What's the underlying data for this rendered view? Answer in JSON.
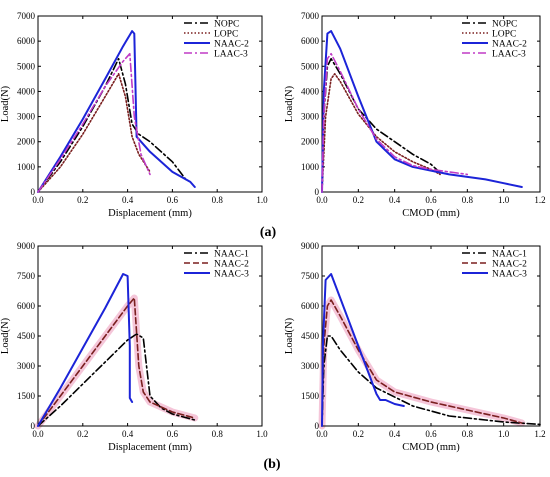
{
  "panel_labels": {
    "a": "(a)",
    "b": "(b)"
  },
  "colors": {
    "black": "#000000",
    "brown": "#7a1f1f",
    "blue": "#1c24d8",
    "purple": "#c03cc6",
    "pink_band": "#f3b8cf"
  },
  "chart_data": [
    {
      "id": "chart-a-left",
      "type": "line",
      "xlabel": "Displacement (mm)",
      "ylabel": "Load(N)",
      "xlim": [
        0,
        1.0
      ],
      "ylim": [
        0,
        7000
      ],
      "xticks": [
        0,
        0.2,
        0.4,
        0.6,
        0.8,
        1.0
      ],
      "xtick_labels": [
        "0.0",
        "0.2",
        "0.4",
        "0.6",
        "0.8",
        "1.0"
      ],
      "yticks": [
        0,
        1000,
        2000,
        3000,
        4000,
        5000,
        6000,
        7000
      ],
      "ytick_labels": [
        "0",
        "1000",
        "2000",
        "3000",
        "4000",
        "5000",
        "6000",
        "7000"
      ],
      "legend_position": "top-right",
      "series": [
        {
          "name": "NOPC",
          "color": "#000000",
          "dash": "8,3,2,3",
          "width": 1.6,
          "x": [
            0,
            0.1,
            0.2,
            0.3,
            0.36,
            0.39,
            0.42,
            0.45,
            0.5,
            0.6,
            0.66
          ],
          "y": [
            0,
            1200,
            2600,
            4200,
            5300,
            4300,
            2700,
            2300,
            2000,
            1200,
            500
          ]
        },
        {
          "name": "LOPC",
          "color": "#7a1f1f",
          "dash": "1.5,2",
          "width": 1.6,
          "x": [
            0,
            0.1,
            0.2,
            0.3,
            0.36,
            0.39,
            0.42,
            0.45,
            0.5
          ],
          "y": [
            0,
            1000,
            2300,
            3800,
            4700,
            3800,
            2200,
            1500,
            800
          ]
        },
        {
          "name": "NAAC-2",
          "color": "#1c24d8",
          "dash": "",
          "width": 2,
          "x": [
            0,
            0.1,
            0.2,
            0.3,
            0.38,
            0.42,
            0.43,
            0.44,
            0.5,
            0.6,
            0.68,
            0.7
          ],
          "y": [
            0,
            1400,
            2900,
            4500,
            5800,
            6400,
            6300,
            2200,
            1600,
            800,
            400,
            200
          ]
        },
        {
          "name": "LAAC-3",
          "color": "#c03cc6",
          "dash": "8,3,2,3",
          "width": 1.6,
          "x": [
            0,
            0.1,
            0.2,
            0.3,
            0.38,
            0.41,
            0.43,
            0.46,
            0.5
          ],
          "y": [
            0,
            1300,
            2700,
            4200,
            5200,
            5500,
            3000,
            1500,
            700
          ]
        }
      ]
    },
    {
      "id": "chart-a-right",
      "type": "line",
      "xlabel": "CMOD (mm)",
      "ylabel": "Load(N)",
      "xlim": [
        0,
        1.2
      ],
      "ylim": [
        0,
        7000
      ],
      "xticks": [
        0,
        0.2,
        0.4,
        0.6,
        0.8,
        1.0,
        1.2
      ],
      "xtick_labels": [
        "0.0",
        "0.2",
        "0.4",
        "0.6",
        "0.8",
        "1.0",
        "1.2"
      ],
      "yticks": [
        0,
        1000,
        2000,
        3000,
        4000,
        5000,
        6000,
        7000
      ],
      "ytick_labels": [
        "0",
        "1000",
        "2000",
        "3000",
        "4000",
        "5000",
        "6000",
        "7000"
      ],
      "legend_position": "top-right",
      "series": [
        {
          "name": "NOPC",
          "color": "#000000",
          "dash": "8,3,2,3",
          "width": 1.6,
          "x": [
            0,
            0.01,
            0.03,
            0.05,
            0.1,
            0.2,
            0.3,
            0.4,
            0.5,
            0.6,
            0.66
          ],
          "y": [
            0,
            3000,
            5000,
            5300,
            4700,
            3300,
            2500,
            2000,
            1500,
            1100,
            700
          ]
        },
        {
          "name": "LOPC",
          "color": "#7a1f1f",
          "dash": "1.5,2",
          "width": 1.6,
          "x": [
            0,
            0.02,
            0.05,
            0.07,
            0.1,
            0.2,
            0.3,
            0.4,
            0.5,
            0.6,
            0.65
          ],
          "y": [
            0,
            3000,
            4500,
            4700,
            4400,
            3100,
            2200,
            1600,
            1200,
            900,
            700
          ]
        },
        {
          "name": "NAAC-2",
          "color": "#1c24d8",
          "dash": "",
          "width": 2,
          "x": [
            0,
            0.01,
            0.03,
            0.05,
            0.1,
            0.2,
            0.3,
            0.4,
            0.5,
            0.7,
            0.9,
            1.0,
            1.1
          ],
          "y": [
            0,
            4000,
            6300,
            6400,
            5700,
            3800,
            2000,
            1300,
            1000,
            700,
            500,
            350,
            200
          ]
        },
        {
          "name": "LAAC-3",
          "color": "#c03cc6",
          "dash": "8,3,2,3",
          "width": 1.6,
          "x": [
            0,
            0.01,
            0.03,
            0.05,
            0.1,
            0.2,
            0.3,
            0.4,
            0.5,
            0.6,
            0.7,
            0.8
          ],
          "y": [
            0,
            3000,
            5300,
            5500,
            4800,
            3300,
            2100,
            1400,
            1050,
            900,
            800,
            700
          ]
        }
      ]
    },
    {
      "id": "chart-b-left",
      "type": "line",
      "xlabel": "Displacement (mm)",
      "ylabel": "Load(N)",
      "xlim": [
        0,
        1.0
      ],
      "ylim": [
        0,
        9000
      ],
      "xticks": [
        0,
        0.2,
        0.4,
        0.6,
        0.8,
        1.0
      ],
      "xtick_labels": [
        "0.0",
        "0.2",
        "0.4",
        "0.6",
        "0.8",
        "1.0"
      ],
      "yticks": [
        0,
        1500,
        3000,
        4500,
        6000,
        7500,
        9000
      ],
      "ytick_labels": [
        "0",
        "1500",
        "3000",
        "4500",
        "6000",
        "7500",
        "9000"
      ],
      "legend_position": "top-right",
      "band": {
        "series": "NAAC-2",
        "color": "#f3b8cf"
      },
      "series": [
        {
          "name": "NAAC-1",
          "color": "#000000",
          "dash": "8,3,2,3",
          "width": 1.6,
          "x": [
            0,
            0.1,
            0.2,
            0.3,
            0.4,
            0.44,
            0.47,
            0.5,
            0.55,
            0.6,
            0.7
          ],
          "y": [
            0,
            1000,
            2100,
            3200,
            4300,
            4600,
            4400,
            1500,
            900,
            600,
            300
          ]
        },
        {
          "name": "NAAC-2",
          "color": "#7a1f1f",
          "dash": "6,3",
          "width": 1.6,
          "x": [
            0,
            0.1,
            0.2,
            0.3,
            0.4,
            0.43,
            0.45,
            0.47,
            0.5,
            0.6,
            0.7
          ],
          "y": [
            0,
            1500,
            3000,
            4500,
            6000,
            6400,
            3000,
            1700,
            1200,
            700,
            400
          ]
        },
        {
          "name": "NAAC-3",
          "color": "#1c24d8",
          "dash": "",
          "width": 2,
          "x": [
            0,
            0.1,
            0.2,
            0.3,
            0.38,
            0.4,
            0.41,
            0.41,
            0.42
          ],
          "y": [
            0,
            1900,
            3900,
            5900,
            7600,
            7500,
            4000,
            1400,
            1200
          ]
        }
      ]
    },
    {
      "id": "chart-b-right",
      "type": "line",
      "xlabel": "CMOD (mm)",
      "ylabel": "Load(N)",
      "xlim": [
        0,
        1.2
      ],
      "ylim": [
        0,
        9000
      ],
      "xticks": [
        0,
        0.2,
        0.4,
        0.6,
        0.8,
        1.0,
        1.2
      ],
      "xtick_labels": [
        "0.0",
        "0.2",
        "0.4",
        "0.6",
        "0.8",
        "1.0",
        "1.2"
      ],
      "yticks": [
        0,
        1500,
        3000,
        4500,
        6000,
        7500,
        9000
      ],
      "ytick_labels": [
        "0",
        "1500",
        "3000",
        "4500",
        "6000",
        "7500",
        "9000"
      ],
      "legend_position": "top-right",
      "band": {
        "series": "NAAC-2",
        "color": "#f3b8cf"
      },
      "series": [
        {
          "name": "NAAC-1",
          "color": "#000000",
          "dash": "8,3,2,3",
          "width": 1.6,
          "x": [
            0,
            0.01,
            0.03,
            0.05,
            0.1,
            0.2,
            0.3,
            0.5,
            0.7,
            0.9,
            1.0,
            1.2
          ],
          "y": [
            0,
            3000,
            4500,
            4500,
            3800,
            2700,
            1900,
            1000,
            500,
            300,
            200,
            80
          ]
        },
        {
          "name": "NAAC-2",
          "color": "#7a1f1f",
          "dash": "6,3",
          "width": 1.6,
          "x": [
            0,
            0.01,
            0.03,
            0.05,
            0.1,
            0.2,
            0.3,
            0.4,
            0.6,
            0.8,
            1.0,
            1.1
          ],
          "y": [
            0,
            4000,
            6000,
            6300,
            5500,
            3800,
            2300,
            1700,
            1200,
            800,
            400,
            150
          ]
        },
        {
          "name": "NAAC-3",
          "color": "#1c24d8",
          "dash": "",
          "width": 2,
          "x": [
            0,
            0.005,
            0.02,
            0.05,
            0.1,
            0.2,
            0.3,
            0.32,
            0.35,
            0.4,
            0.45
          ],
          "y": [
            0,
            4000,
            7300,
            7600,
            6400,
            4000,
            1600,
            1300,
            1300,
            1100,
            1000
          ]
        }
      ]
    }
  ]
}
